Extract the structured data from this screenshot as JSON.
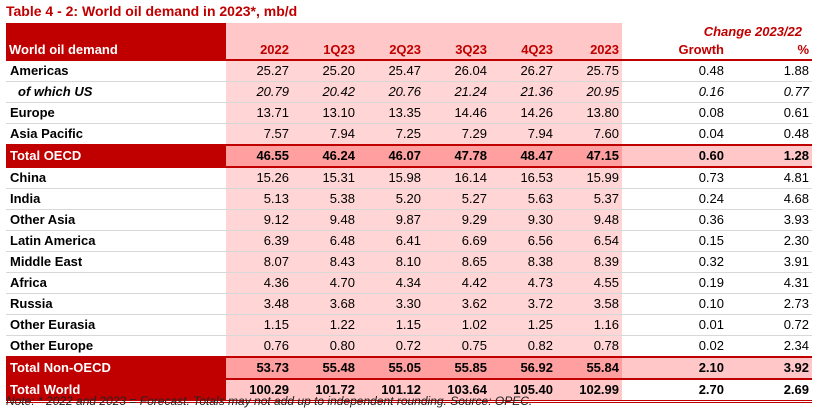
{
  "title": "Table 4 - 2: World oil demand in 2023*, mb/d",
  "header": {
    "change_label": "Change 2023/22",
    "row_label": "World oil demand",
    "columns": [
      "2022",
      "1Q23",
      "2Q23",
      "3Q23",
      "4Q23",
      "2023",
      "Growth",
      "%"
    ]
  },
  "rows": [
    {
      "label": "Americas",
      "values": [
        "25.27",
        "25.20",
        "25.47",
        "26.04",
        "26.27",
        "25.75",
        "0.48",
        "1.88"
      ]
    },
    {
      "label": "of which US",
      "values": [
        "20.79",
        "20.42",
        "20.76",
        "21.24",
        "21.36",
        "20.95",
        "0.16",
        "0.77"
      ]
    },
    {
      "label": "Europe",
      "values": [
        "13.71",
        "13.10",
        "13.35",
        "14.46",
        "14.26",
        "13.80",
        "0.08",
        "0.61"
      ]
    },
    {
      "label": "Asia Pacific",
      "values": [
        "7.57",
        "7.94",
        "7.25",
        "7.29",
        "7.94",
        "7.60",
        "0.04",
        "0.48"
      ]
    },
    {
      "label": "Total OECD",
      "values": [
        "46.55",
        "46.24",
        "46.07",
        "47.78",
        "48.47",
        "47.15",
        "0.60",
        "1.28"
      ]
    },
    {
      "label": "China",
      "values": [
        "15.26",
        "15.31",
        "15.98",
        "16.14",
        "16.53",
        "15.99",
        "0.73",
        "4.81"
      ]
    },
    {
      "label": "India",
      "values": [
        "5.13",
        "5.38",
        "5.20",
        "5.27",
        "5.63",
        "5.37",
        "0.24",
        "4.68"
      ]
    },
    {
      "label": "Other Asia",
      "values": [
        "9.12",
        "9.48",
        "9.87",
        "9.29",
        "9.30",
        "9.48",
        "0.36",
        "3.93"
      ]
    },
    {
      "label": "Latin America",
      "values": [
        "6.39",
        "6.48",
        "6.41",
        "6.69",
        "6.56",
        "6.54",
        "0.15",
        "2.30"
      ]
    },
    {
      "label": "Middle East",
      "values": [
        "8.07",
        "8.43",
        "8.10",
        "8.65",
        "8.38",
        "8.39",
        "0.32",
        "3.91"
      ]
    },
    {
      "label": "Africa",
      "values": [
        "4.36",
        "4.70",
        "4.34",
        "4.42",
        "4.73",
        "4.55",
        "0.19",
        "4.31"
      ]
    },
    {
      "label": "Russia",
      "values": [
        "3.48",
        "3.68",
        "3.30",
        "3.62",
        "3.72",
        "3.58",
        "0.10",
        "2.73"
      ]
    },
    {
      "label": "Other Eurasia",
      "values": [
        "1.15",
        "1.22",
        "1.15",
        "1.02",
        "1.25",
        "1.16",
        "0.01",
        "0.72"
      ]
    },
    {
      "label": "Other Europe",
      "values": [
        "0.76",
        "0.80",
        "0.72",
        "0.75",
        "0.82",
        "0.78",
        "0.02",
        "2.34"
      ]
    },
    {
      "label": "Total Non-OECD",
      "values": [
        "53.73",
        "55.48",
        "55.05",
        "55.85",
        "56.92",
        "55.84",
        "2.10",
        "3.92"
      ]
    },
    {
      "label": "Total World",
      "values": [
        "100.29",
        "101.72",
        "101.12",
        "103.64",
        "105.40",
        "102.99",
        "2.70",
        "2.69"
      ]
    }
  ],
  "note": "Note: * 2022 and 2023 = Forecast. Totals may not add up to independent rounding. Source: OPEC.",
  "colors": {
    "accent": "#c00000",
    "shade": "#ffd5d5",
    "total_shade": "#ff9f9f"
  }
}
